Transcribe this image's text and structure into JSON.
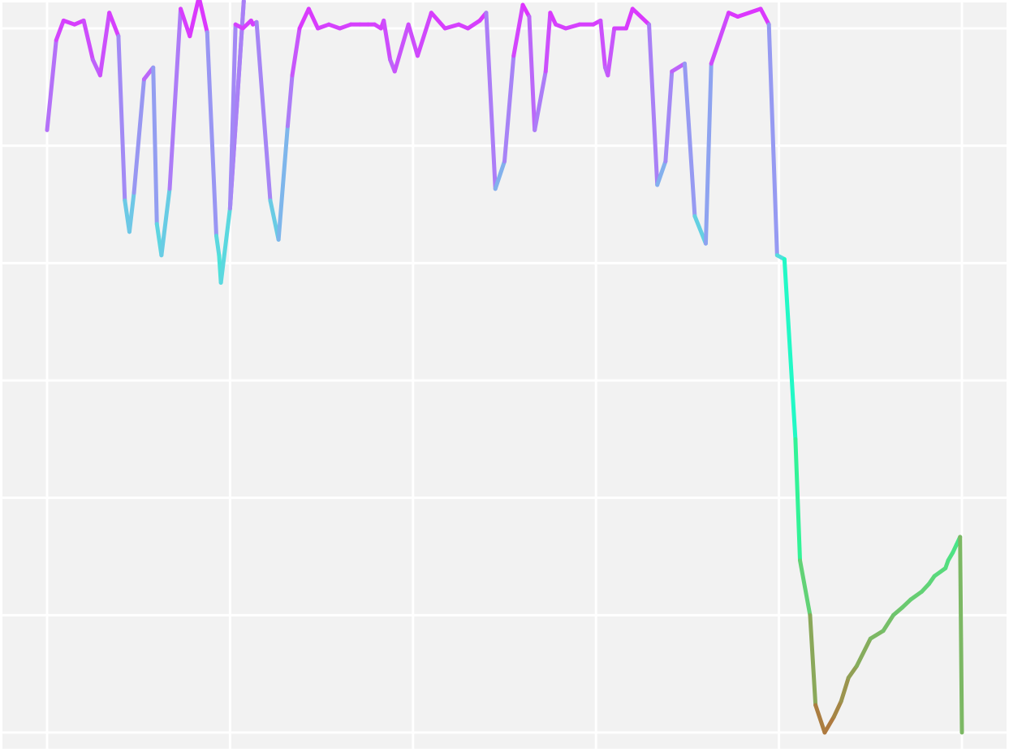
{
  "chart_data": {
    "type": "line",
    "title": "",
    "xlabel": "",
    "ylabel": "",
    "grid": true,
    "legend": "none",
    "axis_labels_visible": false,
    "xlim": [
      0,
      1
    ],
    "ylim": [
      -0.05,
      1.0
    ],
    "x_major_ticks": [
      0,
      0.2,
      0.4,
      0.6,
      0.8,
      1.0
    ],
    "y_major_ticks": [
      0.0,
      0.15,
      0.3,
      0.45,
      0.6,
      0.75,
      0.9
    ],
    "colormap": "rainbow",
    "color_scale": [
      0.0,
      0.85
    ],
    "series": [
      {
        "x": [
          0.0,
          0.01,
          0.018,
          0.03,
          0.04,
          0.05,
          0.058,
          0.068,
          0.078,
          0.085,
          0.09,
          0.095,
          0.106,
          0.116,
          0.12,
          0.125,
          0.134,
          0.146,
          0.156,
          0.166,
          0.175,
          0.185,
          0.188,
          0.19,
          0.2,
          0.215,
          0.2,
          0.206,
          0.214,
          0.223,
          0.225,
          0.229,
          0.244,
          0.253,
          0.263,
          0.268,
          0.276,
          0.286,
          0.296,
          0.308,
          0.32,
          0.332,
          0.342,
          0.351,
          0.358,
          0.365,
          0.368,
          0.375,
          0.38,
          0.395,
          0.405,
          0.42,
          0.435,
          0.45,
          0.46,
          0.473,
          0.48,
          0.49,
          0.5,
          0.51,
          0.52,
          0.527,
          0.533,
          0.545,
          0.55,
          0.556,
          0.567,
          0.582,
          0.597,
          0.605,
          0.61,
          0.613,
          0.62,
          0.633,
          0.64,
          0.658,
          0.667,
          0.676,
          0.683,
          0.697,
          0.708,
          0.72,
          0.726,
          0.745,
          0.755,
          0.78,
          0.789,
          0.798,
          0.806,
          0.818,
          0.823,
          0.834,
          0.84,
          0.85,
          0.86,
          0.868,
          0.876,
          0.885,
          0.9,
          0.914,
          0.925,
          0.935,
          0.944,
          0.956,
          0.964,
          0.97,
          0.982,
          0.985,
          0.99,
          0.994,
          0.998,
          1.0
        ],
        "y": [
          0.77,
          0.885,
          0.91,
          0.905,
          0.91,
          0.86,
          0.84,
          0.92,
          0.89,
          0.68,
          0.64,
          0.69,
          0.835,
          0.85,
          0.65,
          0.61,
          0.695,
          0.925,
          0.89,
          0.94,
          0.895,
          0.635,
          0.61,
          0.575,
          0.67,
          0.935,
          0.67,
          0.905,
          0.9,
          0.91,
          0.905,
          0.908,
          0.68,
          0.63,
          0.775,
          0.84,
          0.9,
          0.925,
          0.9,
          0.905,
          0.9,
          0.905,
          0.905,
          0.905,
          0.905,
          0.9,
          0.91,
          0.86,
          0.845,
          0.905,
          0.865,
          0.92,
          0.9,
          0.905,
          0.9,
          0.91,
          0.92,
          0.695,
          0.73,
          0.865,
          0.93,
          0.915,
          0.77,
          0.845,
          0.92,
          0.905,
          0.9,
          0.905,
          0.905,
          0.91,
          0.85,
          0.84,
          0.9,
          0.9,
          0.925,
          0.905,
          0.7,
          0.73,
          0.845,
          0.855,
          0.66,
          0.625,
          0.855,
          0.92,
          0.915,
          0.925,
          0.905,
          0.61,
          0.605,
          0.375,
          0.22,
          0.15,
          0.035,
          0.0,
          0.02,
          0.04,
          0.07,
          0.085,
          0.12,
          0.13,
          0.15,
          0.16,
          0.17,
          0.18,
          0.19,
          0.2,
          0.21,
          0.22,
          0.23,
          0.24,
          0.25,
          0.0
        ]
      }
    ]
  }
}
